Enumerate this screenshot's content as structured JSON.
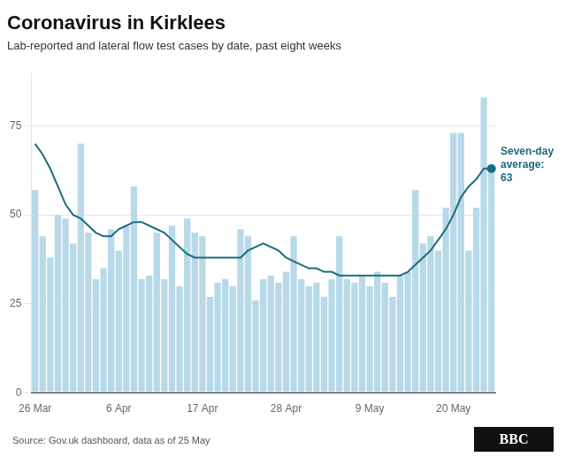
{
  "chart_data": {
    "type": "bar",
    "title": "Coronavirus in Kirklees",
    "subtitle": "Lab-reported and lateral flow test cases by date, past eight weeks",
    "source": "Source: Gov.uk dashboard, data as of 25 May",
    "logo": "BBC",
    "annotations": [
      "Seven-day\naverage:\n63"
    ],
    "categories": [
      "26 Mar",
      null,
      null,
      null,
      null,
      null,
      null,
      null,
      null,
      null,
      null,
      "6 Apr",
      null,
      null,
      null,
      null,
      null,
      null,
      null,
      null,
      null,
      null,
      "17 Apr",
      null,
      null,
      null,
      null,
      null,
      null,
      null,
      null,
      null,
      null,
      "28 Apr",
      null,
      null,
      null,
      null,
      null,
      null,
      null,
      null,
      null,
      null,
      "9 May",
      null,
      null,
      null,
      null,
      null,
      null,
      null,
      null,
      null,
      null,
      "20 May",
      null,
      null,
      null,
      null,
      null
    ],
    "series": [
      {
        "type": "bar",
        "color": "#b8d9e8",
        "values": [
          57,
          44,
          38,
          50,
          49,
          42,
          70,
          45,
          32,
          35,
          46,
          40,
          47,
          58,
          32,
          33,
          45,
          32,
          47,
          30,
          49,
          45,
          44,
          27,
          31,
          32,
          30,
          46,
          44,
          26,
          32,
          33,
          31,
          34,
          44,
          32,
          30,
          31,
          27,
          32,
          44,
          32,
          31,
          33,
          30,
          34,
          31,
          27,
          33,
          34,
          57,
          42,
          44,
          40,
          52,
          73,
          73,
          40,
          52,
          83,
          63
        ]
      },
      {
        "type": "line",
        "color": "#1b6c7c",
        "values": [
          70,
          67,
          63,
          58,
          53,
          50,
          49,
          47,
          45,
          44,
          44,
          46,
          47,
          48,
          48,
          47,
          46,
          45,
          43,
          41,
          39,
          38,
          38,
          38,
          38,
          38,
          38,
          38,
          40,
          41,
          42,
          41,
          40,
          38,
          37,
          36,
          35,
          35,
          34,
          34,
          33,
          33,
          33,
          33,
          33,
          33,
          33,
          33,
          33,
          34,
          36,
          38,
          40,
          43,
          46,
          50,
          55,
          58,
          60,
          63,
          63
        ]
      }
    ],
    "ylim": [
      0,
      90
    ],
    "yticks": [
      0,
      25,
      50,
      75
    ],
    "grid": true
  }
}
